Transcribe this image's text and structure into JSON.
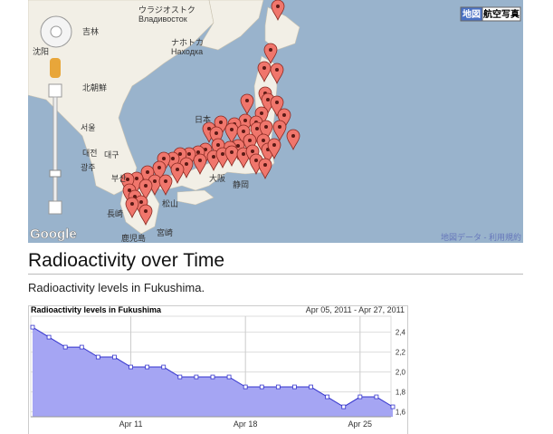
{
  "map": {
    "map_type_buttons": [
      "地図",
      "航空写真"
    ],
    "labels": [
      "ウラジオストク",
      "Владивосток",
      "ナホトカ",
      "Находка",
      "吉林",
      "沈阳",
      "北朝鮮",
      "서울",
      "대전",
      "대구",
      "광주",
      "부산",
      "日本",
      "松山",
      "大阪",
      "静岡",
      "長崎",
      "鹿児島",
      "宮崎"
    ],
    "logo": "Google",
    "attribution": "地図データ - 利用規約"
  },
  "heading": "Radioactivity over Time",
  "description": "Radioactivity levels in Fukushima.",
  "chart_data": {
    "type": "area",
    "title": "Radioactivity levels in Fukushima",
    "date_range": "Apr 05, 2011 - Apr 27, 2011",
    "categories": [
      null,
      null,
      null,
      null,
      null,
      null,
      "Apr 11",
      null,
      null,
      null,
      null,
      null,
      null,
      "Apr 18",
      null,
      null,
      null,
      null,
      null,
      null,
      "Apr 25",
      null,
      null
    ],
    "values": [
      2.45,
      2.35,
      2.25,
      2.25,
      2.15,
      2.15,
      2.05,
      2.05,
      2.05,
      1.95,
      1.95,
      1.95,
      1.95,
      1.85,
      1.85,
      1.85,
      1.85,
      1.85,
      1.75,
      1.65,
      1.75,
      1.75,
      1.65
    ],
    "color": "#3333cc",
    "fill": "#a5a5f3",
    "ylim": [
      1.55,
      2.56
    ],
    "yticks": [
      {
        "value": 1.6,
        "label": "1,6"
      },
      {
        "value": 1.8,
        "label": "1,8"
      },
      {
        "value": 2.0,
        "label": "2,0"
      },
      {
        "value": 2.2,
        "label": "2,2"
      },
      {
        "value": 2.4,
        "label": "2,4"
      }
    ],
    "grid": true
  }
}
